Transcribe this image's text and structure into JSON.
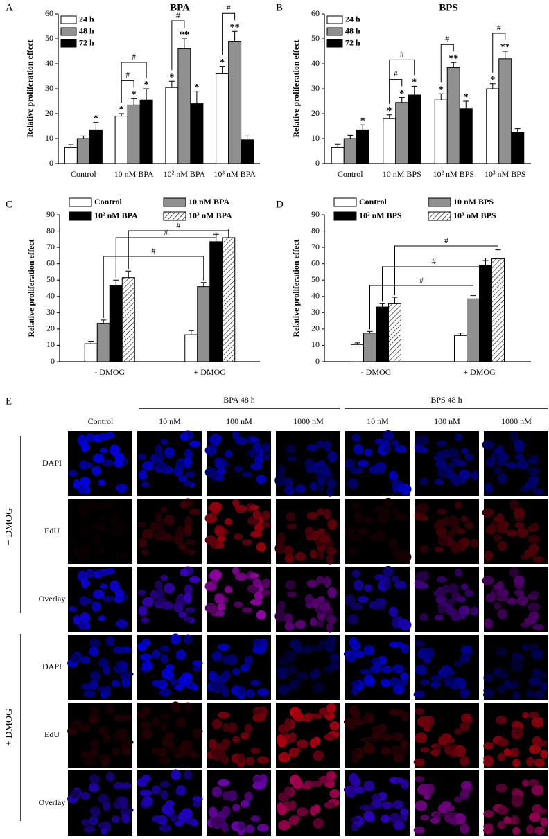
{
  "chart_data": [
    {
      "type": "bar",
      "panel": "A",
      "title": "BPA",
      "y_label": "Relative proliferation effect",
      "categories": [
        "Control",
        "10 nM BPA",
        "10² nM BPA",
        "10³ nM BPA"
      ],
      "ylim": [
        0,
        60
      ],
      "yticks": [
        0,
        10,
        20,
        30,
        40,
        50,
        60
      ],
      "series": [
        {
          "name": "24 h",
          "color": "#ffffff",
          "values": [
            6.5,
            19,
            30.5,
            36
          ],
          "errors": [
            1,
            1,
            2.5,
            3
          ],
          "stars": [
            null,
            "*",
            "*",
            "*"
          ]
        },
        {
          "name": "48 h",
          "color": "#909090",
          "values": [
            10,
            23.5,
            46,
            49
          ],
          "errors": [
            1,
            2.5,
            4,
            4
          ],
          "stars": [
            null,
            "*",
            "**",
            "**"
          ]
        },
        {
          "name": "72 h",
          "color": "#000000",
          "values": [
            13.5,
            25.5,
            24,
            9.5
          ],
          "errors": [
            3,
            4.5,
            5,
            1.5
          ],
          "stars": [
            "*",
            "*",
            "*",
            null
          ]
        }
      ],
      "brackets": [
        "#",
        "#",
        "#",
        "#"
      ]
    },
    {
      "type": "bar",
      "panel": "B",
      "title": "BPS",
      "y_label": "Relative proliferation effect",
      "categories": [
        "Control",
        "10 nM BPS",
        "10² nM BPS",
        "10³ nM BPS"
      ],
      "ylim": [
        0,
        60
      ],
      "yticks": [
        0,
        10,
        20,
        30,
        40,
        50,
        60
      ],
      "series": [
        {
          "name": "24 h",
          "color": "#ffffff",
          "values": [
            6.5,
            18,
            25.5,
            30
          ],
          "errors": [
            1.2,
            1.5,
            2.5,
            2
          ],
          "stars": [
            null,
            "*",
            "*",
            "*"
          ]
        },
        {
          "name": "48 h",
          "color": "#909090",
          "values": [
            10,
            24.5,
            38.5,
            42
          ],
          "errors": [
            1.3,
            2,
            2,
            3
          ],
          "stars": [
            null,
            "*",
            "**",
            "**"
          ]
        },
        {
          "name": "72 h",
          "color": "#000000",
          "values": [
            13.5,
            27.5,
            22,
            12.5
          ],
          "errors": [
            2,
            3.5,
            3,
            1.5
          ],
          "stars": [
            "*",
            "*",
            "*",
            null
          ]
        }
      ],
      "brackets": [
        "#",
        "#",
        "#",
        "#"
      ]
    },
    {
      "type": "bar",
      "panel": "C",
      "y_label": "Relative proliferation effect",
      "categories": [
        "- DMOG",
        "+ DMOG"
      ],
      "ylim": [
        0,
        90
      ],
      "yticks": [
        0,
        10,
        20,
        30,
        40,
        50,
        60,
        70,
        80,
        90
      ],
      "series": [
        {
          "name": "Control",
          "color": "#ffffff",
          "values": [
            11,
            16.5
          ],
          "errors": [
            1.5,
            2.5
          ]
        },
        {
          "name": "10 nM BPA",
          "color": "#909090",
          "values": [
            23.5,
            46
          ],
          "errors": [
            2,
            2.5
          ]
        },
        {
          "name": "10² nM BPA",
          "color": "#000000",
          "values": [
            46.5,
            73.5
          ],
          "errors": [
            3.5,
            4.5
          ]
        },
        {
          "name": "10³ nM BPA",
          "color": "#ffffff",
          "hatch": true,
          "values": [
            51.5,
            76
          ],
          "errors": [
            4,
            4
          ]
        }
      ],
      "brackets": [
        "#",
        "#",
        "#"
      ]
    },
    {
      "type": "bar",
      "panel": "D",
      "y_label": "Relative proliferation effect",
      "categories": [
        "- DMOG",
        "+ DMOG"
      ],
      "ylim": [
        0,
        90
      ],
      "yticks": [
        0,
        10,
        20,
        30,
        40,
        50,
        60,
        70,
        80,
        90
      ],
      "series": [
        {
          "name": "Control",
          "color": "#ffffff",
          "values": [
            10.5,
            16
          ],
          "errors": [
            1,
            1.5
          ]
        },
        {
          "name": "10 nM BPS",
          "color": "#909090",
          "values": [
            17.5,
            38.5
          ],
          "errors": [
            1,
            2
          ]
        },
        {
          "name": "10² nM BPS",
          "color": "#000000",
          "values": [
            33.5,
            59
          ],
          "errors": [
            2,
            3
          ]
        },
        {
          "name": "10³ nM BPS",
          "color": "#ffffff",
          "hatch": true,
          "values": [
            35.5,
            63
          ],
          "errors": [
            4,
            5.5
          ]
        }
      ],
      "brackets": [
        "#",
        "#",
        "#"
      ]
    }
  ],
  "panel_e": {
    "label": "E",
    "groups": [
      "BPA 48 h",
      "BPS 48 h"
    ],
    "columns": [
      "Control",
      "10 nM",
      "100 nM",
      "1000 nM",
      "10 nM",
      "100 nM",
      "1000 nM"
    ],
    "conditions": [
      "− DMOG",
      "+ DMOG"
    ],
    "rows": [
      "DAPI",
      "EdU",
      "Overlay"
    ]
  }
}
